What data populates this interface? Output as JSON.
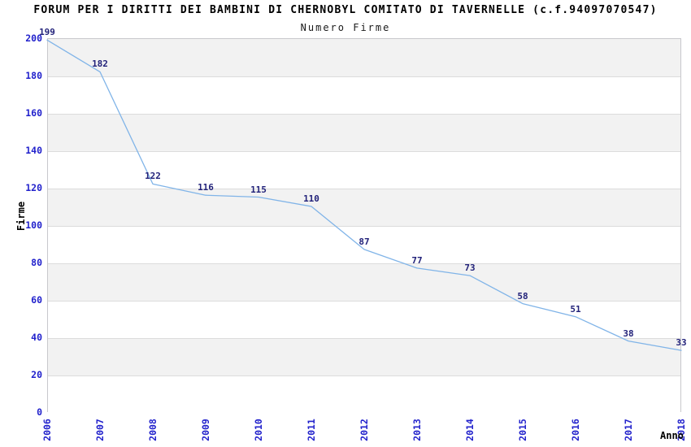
{
  "chart_data": {
    "type": "line",
    "title": "FORUM PER I DIRITTI DEI BAMBINI DI CHERNOBYL COMITATO DI TAVERNELLE (c.f.94097070547)",
    "subtitle": "Numero Firme",
    "xlabel": "Anno",
    "ylabel": "Firme",
    "categories": [
      "2006",
      "2007",
      "2008",
      "2009",
      "2010",
      "2011",
      "2012",
      "2013",
      "2014",
      "2015",
      "2016",
      "2017",
      "2018"
    ],
    "series": [
      {
        "name": "Numero Firme",
        "values": [
          199,
          182,
          122,
          116,
          115,
          110,
          87,
          77,
          73,
          58,
          51,
          38,
          33
        ]
      }
    ],
    "ylim": [
      0,
      200
    ],
    "ytick_step": 20,
    "grid": "horizontal-bands",
    "legend": "none",
    "point_labels_visible": true,
    "colors": {
      "line": "#80b4e8",
      "tick_labels": "#2222cc",
      "point_labels": "#22227a",
      "band": "#f2f2f2",
      "grid": "#dcdcdc",
      "border": "#c8c8cc",
      "text": "#000000"
    }
  }
}
